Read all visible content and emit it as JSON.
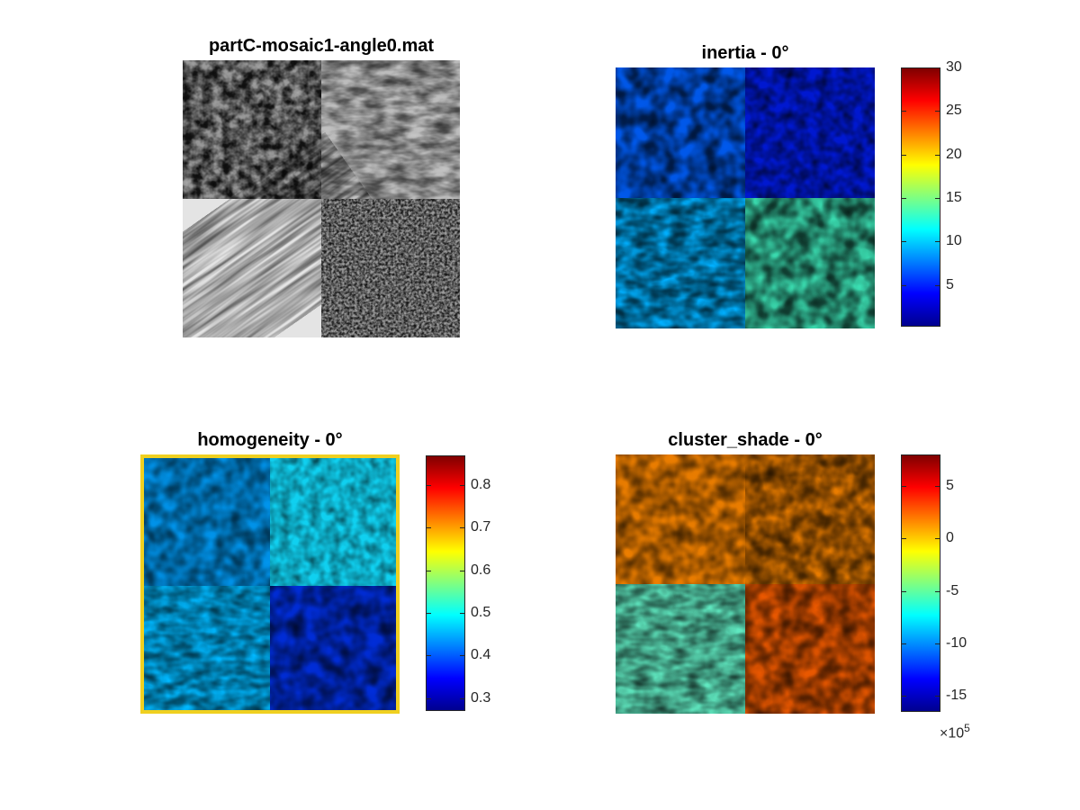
{
  "chart_data": [
    {
      "type": "heatmap",
      "title": "partC-mosaic1-angle0.mat",
      "colormap": "gray",
      "colorbar": false
    },
    {
      "type": "heatmap",
      "title": "inertia - 0°",
      "colormap": "jet",
      "colorbar": true,
      "clim": [
        0.2,
        30
      ],
      "colorbar_ticks": [
        "5",
        "10",
        "15",
        "20",
        "25",
        "30"
      ]
    },
    {
      "type": "heatmap",
      "title": "homogeneity - 0°",
      "colormap": "jet",
      "colorbar": true,
      "clim": [
        0.27,
        0.87
      ],
      "colorbar_ticks": [
        "0.3",
        "0.4",
        "0.5",
        "0.6",
        "0.7",
        "0.8"
      ]
    },
    {
      "type": "heatmap",
      "title": "cluster_shade - 0°",
      "colormap": "jet",
      "colorbar": true,
      "clim": [
        -16.5,
        8
      ],
      "colorbar_ticks": [
        "5",
        "0",
        "-5",
        "-10",
        "-15"
      ],
      "colorbar_exponent": "×10",
      "colorbar_exponent_power": "5"
    }
  ]
}
